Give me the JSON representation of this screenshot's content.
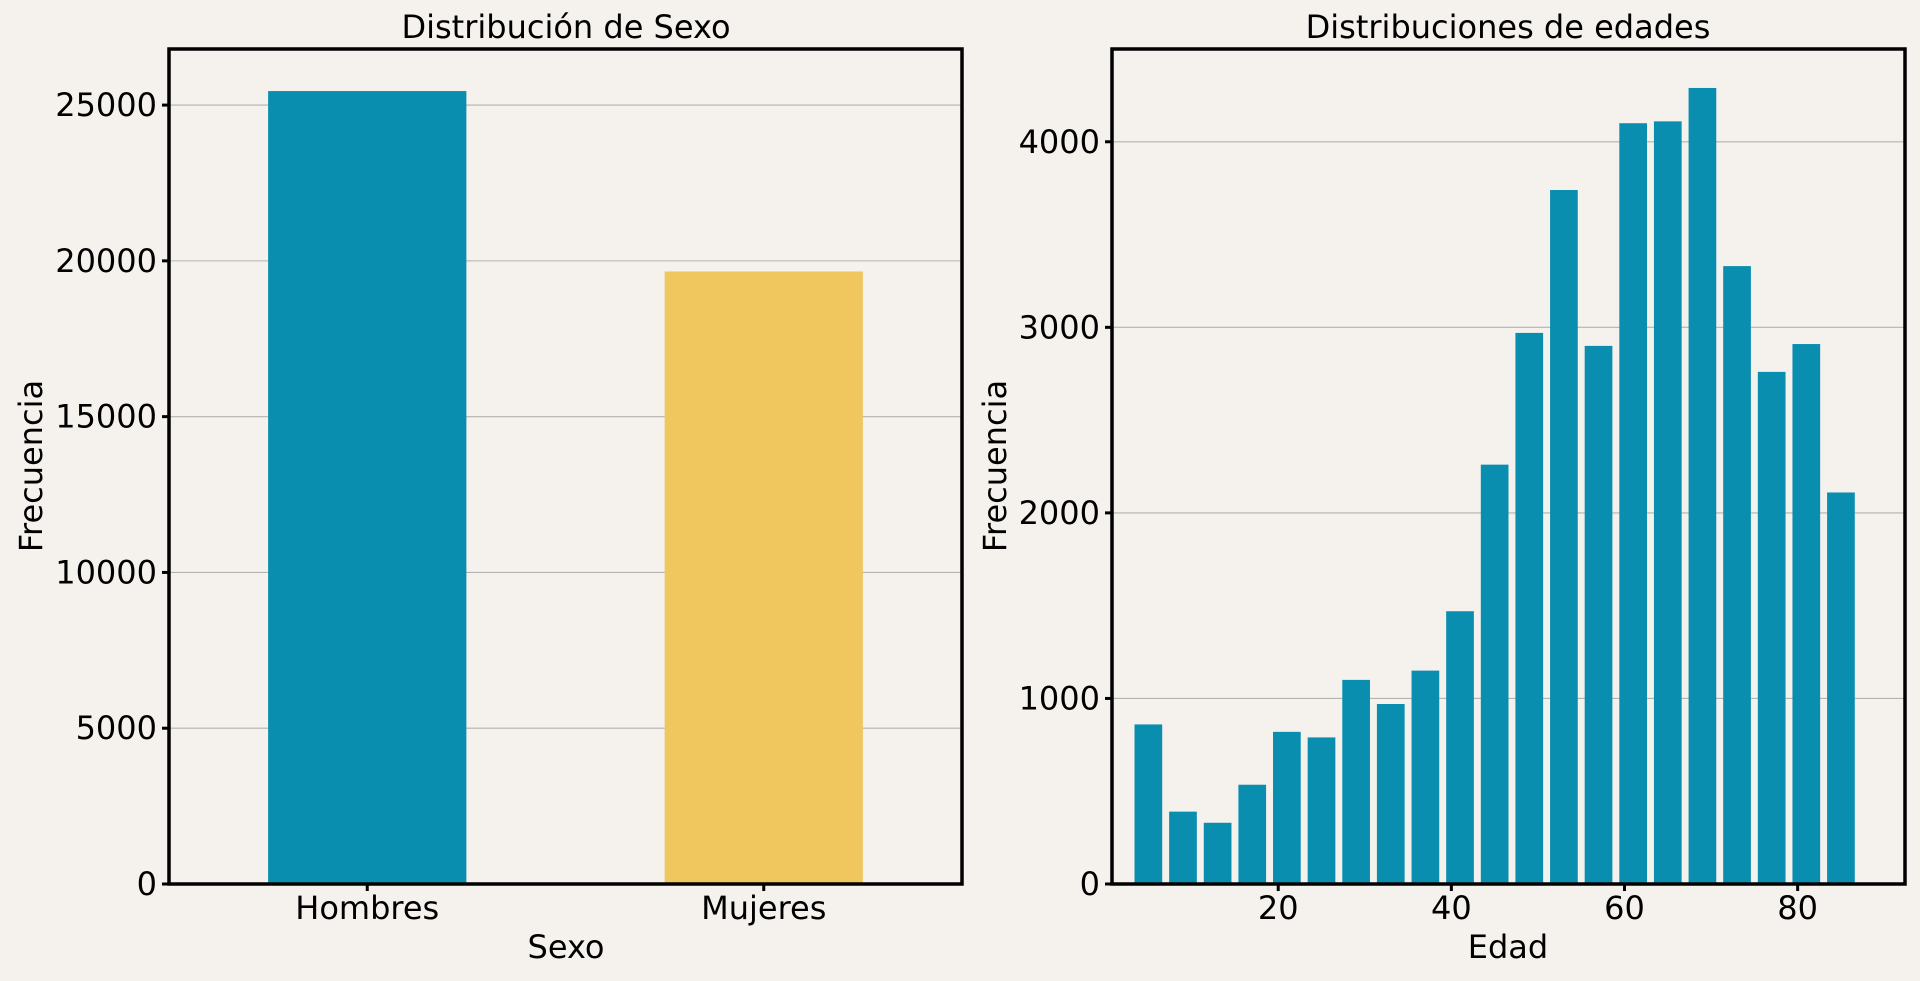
{
  "figure": {
    "background": "#f5f2ed"
  },
  "chart_data": [
    {
      "type": "bar",
      "title": "Distribución de Sexo",
      "xlabel": "Sexo",
      "ylabel": "Frecuencia",
      "categories": [
        "Hombres",
        "Mujeres"
      ],
      "values": [
        25450,
        19660
      ],
      "colors": [
        "#0a8eb0",
        "#f0c75e"
      ],
      "ylim": [
        0,
        26800
      ],
      "yticks": [
        0,
        5000,
        10000,
        15000,
        20000,
        25000
      ],
      "ytick_labels": [
        "0",
        "5000",
        "10000",
        "15000",
        "20000",
        "25000"
      ],
      "grid": "y"
    },
    {
      "type": "bar",
      "title": "Distribuciones de edades",
      "xlabel": "Edad",
      "ylabel": "Frecuencia",
      "x": [
        5,
        9,
        13,
        17,
        21,
        25,
        29,
        33,
        37,
        41,
        45,
        49,
        53,
        57,
        61,
        65,
        69,
        73,
        77,
        81,
        85
      ],
      "values": [
        860,
        390,
        330,
        535,
        820,
        790,
        1100,
        970,
        1150,
        1470,
        2260,
        2970,
        3740,
        2900,
        4100,
        4110,
        4290,
        3330,
        2760,
        2910,
        2110
      ],
      "bar_width": 3.2,
      "color": "#0a8eb0",
      "xlim": [
        0.8,
        92.4
      ],
      "ylim": [
        0,
        4500
      ],
      "xticks": [
        20,
        40,
        60,
        80
      ],
      "xtick_labels": [
        "20",
        "40",
        "60",
        "80"
      ],
      "yticks": [
        0,
        1000,
        2000,
        3000,
        4000
      ],
      "ytick_labels": [
        "0",
        "1000",
        "2000",
        "3000",
        "4000"
      ],
      "grid": "y"
    }
  ]
}
